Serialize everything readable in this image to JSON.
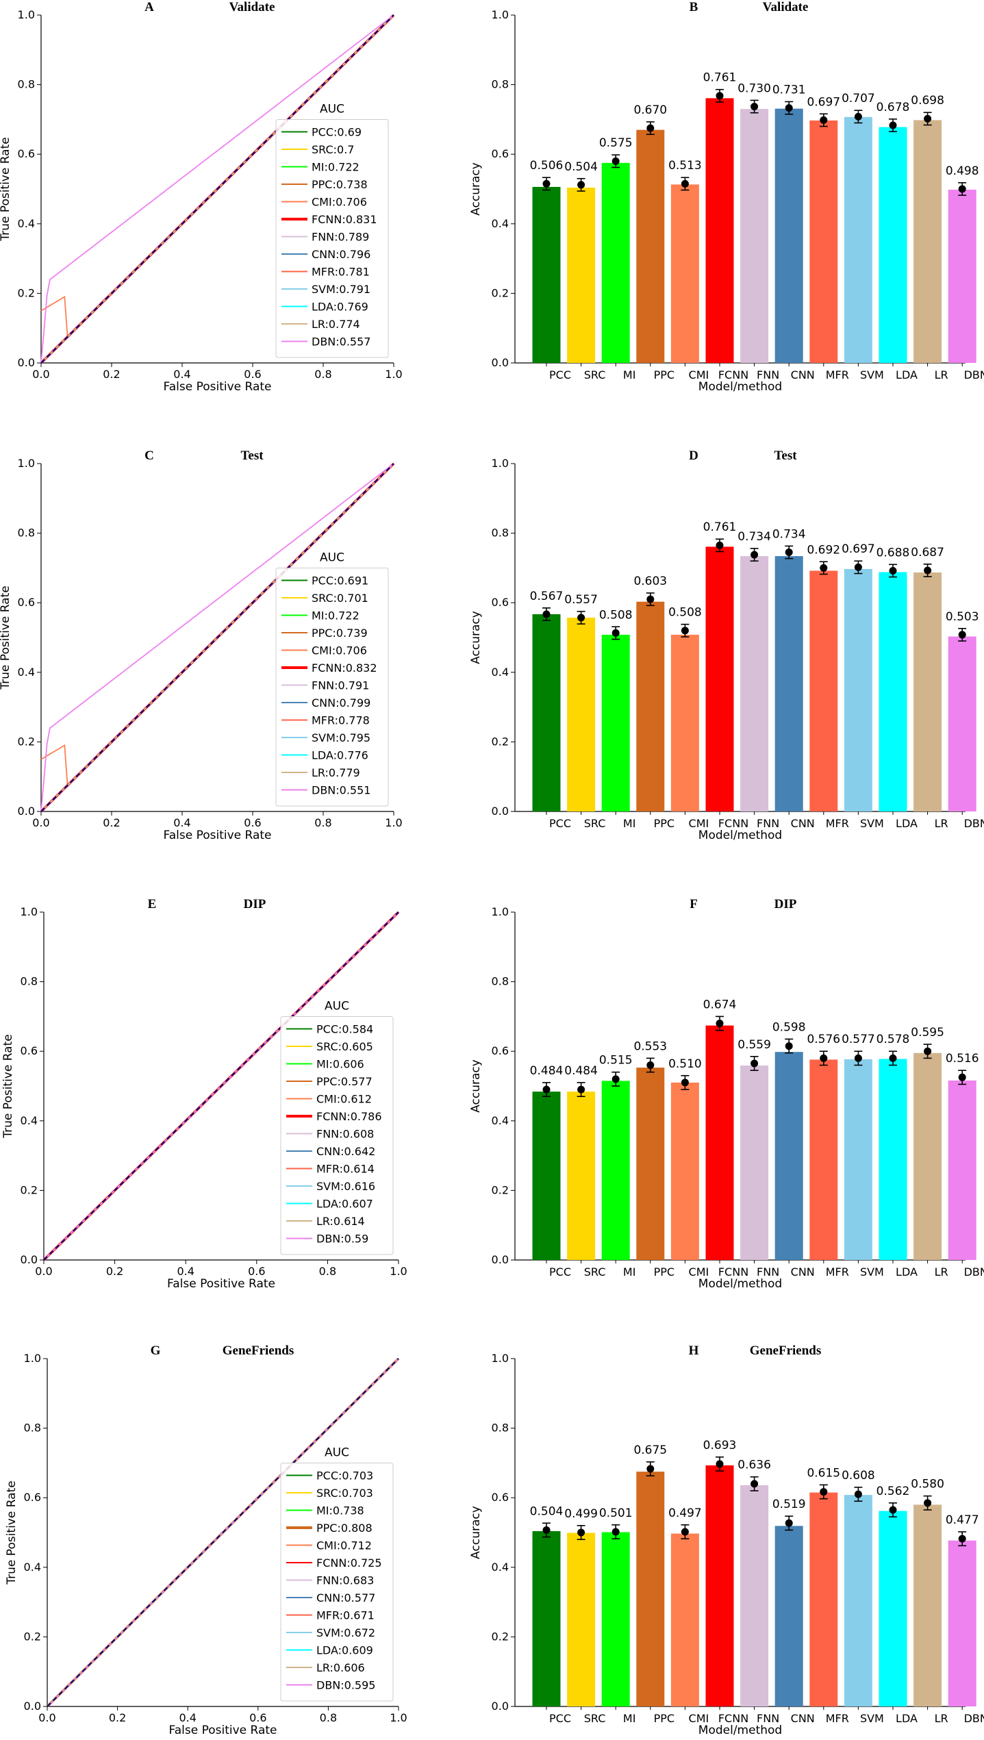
{
  "figure": {
    "description": "Eight-panel figure: ROC curves and accuracy bar charts"
  },
  "models": [
    "PCC",
    "SRC",
    "MI",
    "PPC",
    "CMI",
    "FCNN",
    "FNN",
    "CNN",
    "MFR",
    "SVM",
    "LDA",
    "LR",
    "DBN"
  ],
  "colors": [
    "#008000",
    "#ffd700",
    "#00ff00",
    "#d2691e",
    "#ff7f50",
    "#ff0000",
    "#d8bfd8",
    "#4682b4",
    "#ff6347",
    "#87ceeb",
    "#00ffff",
    "#d2b48c",
    "#ee82ee"
  ],
  "chart_data": [
    {
      "type": "line",
      "panel": "A",
      "title": "Validate",
      "xlabel": "False Positive Rate",
      "ylabel": "True Positive Rate",
      "xlim": [
        0,
        1
      ],
      "ylim": [
        0,
        1
      ],
      "ticks": [
        "0.0",
        "0.2",
        "0.4",
        "0.6",
        "0.8",
        "1.0"
      ],
      "legend_title": "AUC",
      "highlight": "FCNN",
      "legend": [
        "PCC:0.69",
        "SRC:0.7",
        "MI:0.722",
        "PPC:0.738",
        "CMI:0.706",
        "FCNN:0.831",
        "FNN:0.789",
        "CNN:0.796",
        "MFR:0.781",
        "SVM:0.791",
        "LDA:0.769",
        "LR:0.774",
        "DBN:0.557"
      ],
      "auc": [
        0.69,
        0.7,
        0.722,
        0.738,
        0.706,
        0.831,
        0.789,
        0.796,
        0.781,
        0.791,
        0.769,
        0.774,
        0.557
      ]
    },
    {
      "type": "bar",
      "panel": "B",
      "title": "Validate",
      "xlabel": "Model/method",
      "ylabel": "Accuracy",
      "ylim": [
        0,
        1
      ],
      "ticks": [
        "0.0",
        "0.2",
        "0.4",
        "0.6",
        "0.8",
        "1.0"
      ],
      "categories": [
        "PCC",
        "SRC",
        "MI",
        "PPC",
        "CMI",
        "FCNN",
        "FNN",
        "CNN",
        "MFR",
        "SVM",
        "LDA",
        "LR",
        "DBN"
      ],
      "values": [
        0.506,
        0.504,
        0.575,
        0.67,
        0.513,
        0.761,
        0.73,
        0.731,
        0.697,
        0.707,
        0.678,
        0.698,
        0.498
      ],
      "labels": [
        "0.506",
        "0.504",
        "0.575",
        "0.670",
        "0.513",
        "0.761",
        "0.730",
        "0.731",
        "0.697",
        "0.707",
        "0.678",
        "0.698",
        "0.498"
      ],
      "points": [
        0.515,
        0.512,
        0.58,
        0.675,
        0.515,
        0.768,
        0.737,
        0.733,
        0.698,
        0.708,
        0.683,
        0.702,
        0.5
      ],
      "error": 0.018
    },
    {
      "type": "line",
      "panel": "C",
      "title": "Test",
      "xlabel": "False Positive Rate",
      "ylabel": "True Positive Rate",
      "xlim": [
        0,
        1
      ],
      "ylim": [
        0,
        1
      ],
      "ticks": [
        "0.0",
        "0.2",
        "0.4",
        "0.6",
        "0.8",
        "1.0"
      ],
      "legend_title": "AUC",
      "highlight": "FCNN",
      "legend": [
        "PCC:0.691",
        "SRC:0.701",
        "MI:0.722",
        "PPC:0.739",
        "CMI:0.706",
        "FCNN:0.832",
        "FNN:0.791",
        "CNN:0.799",
        "MFR:0.778",
        "SVM:0.795",
        "LDA:0.776",
        "LR:0.779",
        "DBN:0.551"
      ],
      "auc": [
        0.691,
        0.701,
        0.722,
        0.739,
        0.706,
        0.832,
        0.791,
        0.799,
        0.778,
        0.795,
        0.776,
        0.779,
        0.551
      ]
    },
    {
      "type": "bar",
      "panel": "D",
      "title": "Test",
      "xlabel": "Model/method",
      "ylabel": "Accuracy",
      "ylim": [
        0,
        1
      ],
      "ticks": [
        "0.0",
        "0.2",
        "0.4",
        "0.6",
        "0.8",
        "1.0"
      ],
      "categories": [
        "PCC",
        "SRC",
        "MI",
        "PPC",
        "CMI",
        "FCNN",
        "FNN",
        "CNN",
        "MFR",
        "SVM",
        "LDA",
        "LR",
        "DBN"
      ],
      "values": [
        0.567,
        0.557,
        0.508,
        0.603,
        0.508,
        0.761,
        0.734,
        0.734,
        0.692,
        0.697,
        0.688,
        0.687,
        0.503
      ],
      "labels": [
        "0.567",
        "0.557",
        "0.508",
        "0.603",
        "0.508",
        "0.761",
        "0.734",
        "0.734",
        "0.692",
        "0.697",
        "0.688",
        "0.687",
        "0.503"
      ],
      "points": [
        0.567,
        0.557,
        0.513,
        0.61,
        0.52,
        0.765,
        0.738,
        0.745,
        0.7,
        0.702,
        0.692,
        0.693,
        0.508
      ],
      "error": 0.018
    },
    {
      "type": "line",
      "panel": "E",
      "title": "DIP",
      "xlabel": "False Positive Rate",
      "ylabel": "True Positive Rate",
      "xlim": [
        0,
        1
      ],
      "ylim": [
        0,
        1
      ],
      "ticks": [
        "0.0",
        "0.2",
        "0.4",
        "0.6",
        "0.8",
        "1.0"
      ],
      "legend_title": "AUC",
      "highlight": "FCNN",
      "legend": [
        "PCC:0.584",
        "SRC:0.605",
        "MI:0.606",
        "PPC:0.577",
        "CMI:0.612",
        "FCNN:0.786",
        "FNN:0.608",
        "CNN:0.642",
        "MFR:0.614",
        "SVM:0.616",
        "LDA:0.607",
        "LR:0.614",
        "DBN:0.59"
      ],
      "auc": [
        0.584,
        0.605,
        0.606,
        0.577,
        0.612,
        0.786,
        0.608,
        0.642,
        0.614,
        0.616,
        0.607,
        0.614,
        0.59
      ]
    },
    {
      "type": "bar",
      "panel": "F",
      "title": "DIP",
      "xlabel": "Model/method",
      "ylabel": "Accuracy",
      "ylim": [
        0,
        1
      ],
      "ticks": [
        "0.0",
        "0.2",
        "0.4",
        "0.6",
        "0.8",
        "1.0"
      ],
      "categories": [
        "PCC",
        "SRC",
        "MI",
        "PPC",
        "CMI",
        "FCNN",
        "FNN",
        "CNN",
        "MFR",
        "SVM",
        "LDA",
        "LR",
        "DBN"
      ],
      "values": [
        0.484,
        0.484,
        0.515,
        0.553,
        0.51,
        0.674,
        0.559,
        0.598,
        0.576,
        0.577,
        0.578,
        0.595,
        0.516
      ],
      "labels": [
        "0.484",
        "0.484",
        "0.515",
        "0.553",
        "0.510",
        "0.674",
        "0.559",
        "0.598",
        "0.576",
        "0.577",
        "0.578",
        "0.595",
        "0.516"
      ],
      "points": [
        0.49,
        0.49,
        0.52,
        0.56,
        0.51,
        0.68,
        0.565,
        0.615,
        0.58,
        0.58,
        0.58,
        0.6,
        0.525
      ],
      "error": 0.02
    },
    {
      "type": "line",
      "panel": "G",
      "title": "GeneFriends",
      "xlabel": "False Positive Rate",
      "ylabel": "True Positive Rate",
      "xlim": [
        0,
        1
      ],
      "ylim": [
        0,
        1
      ],
      "ticks": [
        "0.0",
        "0.2",
        "0.4",
        "0.6",
        "0.8",
        "1.0"
      ],
      "legend_title": "AUC",
      "highlight": "PPC",
      "legend": [
        "PCC:0.703",
        "SRC:0.703",
        "MI:0.738",
        "PPC:0.808",
        "CMI:0.712",
        "FCNN:0.725",
        "FNN:0.683",
        "CNN:0.577",
        "MFR:0.671",
        "SVM:0.672",
        "LDA:0.609",
        "LR:0.606",
        "DBN:0.595"
      ],
      "auc": [
        0.703,
        0.703,
        0.738,
        0.808,
        0.712,
        0.725,
        0.683,
        0.577,
        0.671,
        0.672,
        0.609,
        0.606,
        0.595
      ]
    },
    {
      "type": "bar",
      "panel": "H",
      "title": "GeneFriends",
      "xlabel": "Model/method",
      "ylabel": "Accuracy",
      "ylim": [
        0,
        1
      ],
      "ticks": [
        "0.0",
        "0.2",
        "0.4",
        "0.6",
        "0.8",
        "1.0"
      ],
      "categories": [
        "PCC",
        "SRC",
        "MI",
        "PPC",
        "CMI",
        "FCNN",
        "FNN",
        "CNN",
        "MFR",
        "SVM",
        "LDA",
        "LR",
        "DBN"
      ],
      "values": [
        0.504,
        0.499,
        0.501,
        0.675,
        0.497,
        0.693,
        0.636,
        0.519,
        0.615,
        0.608,
        0.562,
        0.58,
        0.477
      ],
      "labels": [
        "0.504",
        "0.499",
        "0.501",
        "0.675",
        "0.497",
        "0.693",
        "0.636",
        "0.519",
        "0.615",
        "0.608",
        "0.562",
        "0.580",
        "0.477"
      ],
      "points": [
        0.507,
        0.5,
        0.502,
        0.683,
        0.502,
        0.697,
        0.64,
        0.527,
        0.617,
        0.61,
        0.565,
        0.585,
        0.482
      ],
      "error": 0.02
    }
  ]
}
